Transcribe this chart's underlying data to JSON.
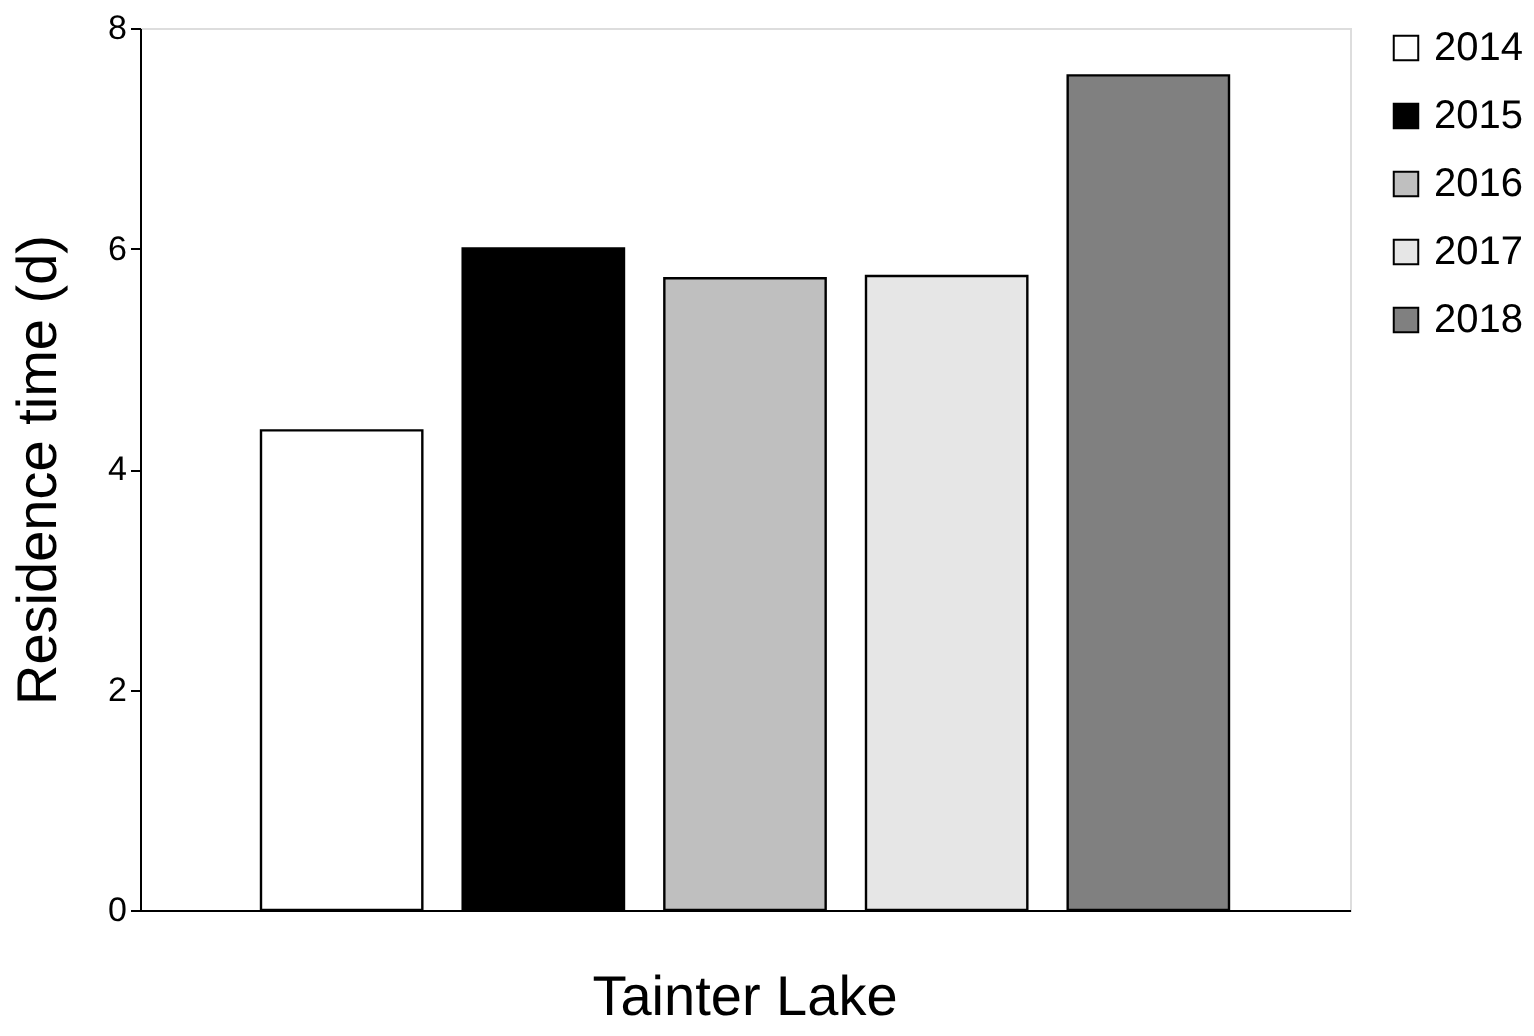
{
  "chart_data": {
    "type": "bar",
    "ylabel": "Residence time (d)",
    "categories": [
      "Tainter Lake"
    ],
    "series": [
      {
        "name": "2014",
        "color": "#ffffff",
        "values": [
          4.35
        ]
      },
      {
        "name": "2015",
        "color": "#000000",
        "values": [
          6.0
        ]
      },
      {
        "name": "2016",
        "color": "#bfbfbf",
        "values": [
          5.73
        ]
      },
      {
        "name": "2017",
        "color": "#e6e6e6",
        "values": [
          5.75
        ]
      },
      {
        "name": "2018",
        "color": "#808080",
        "values": [
          7.57
        ]
      }
    ],
    "ylim": [
      0,
      8
    ],
    "yticks": [
      0,
      2,
      4,
      6,
      8
    ],
    "grid": false,
    "legend": "right"
  }
}
